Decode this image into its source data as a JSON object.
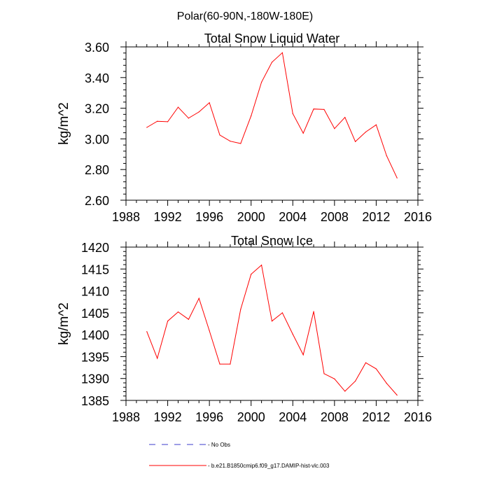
{
  "suptitle": "Polar(60-90N,-180W-180E)",
  "chart_data": [
    {
      "type": "line",
      "title": "Total Snow Liquid Water",
      "xlabel": "",
      "ylabel": "kg/m^2",
      "xlim": [
        1988,
        2016
      ],
      "ylim": [
        2.6,
        3.6
      ],
      "xticks": [
        1988,
        1992,
        1996,
        2000,
        2004,
        2008,
        2012,
        2016
      ],
      "yticks": [
        2.6,
        2.8,
        3.0,
        3.2,
        3.4,
        3.6
      ],
      "ytick_labels": [
        "2.60",
        "2.80",
        "3.00",
        "3.20",
        "3.40",
        "3.60"
      ],
      "series": [
        {
          "name": "b.e21.B1850cmip6.f09_g17.DAMIP-hist-vlc.003",
          "color": "#ff0000",
          "x": [
            1990,
            1991,
            1992,
            1993,
            1994,
            1995,
            1996,
            1997,
            1998,
            1999,
            2000,
            2001,
            2002,
            2003,
            2004,
            2005,
            2006,
            2007,
            2008,
            2009,
            2010,
            2011,
            2012,
            2013,
            2014
          ],
          "values": [
            3.075,
            3.115,
            3.112,
            3.207,
            3.135,
            3.176,
            3.236,
            3.025,
            2.985,
            2.97,
            3.15,
            3.37,
            3.5,
            3.562,
            3.165,
            3.037,
            3.195,
            3.192,
            3.067,
            3.14,
            2.982,
            3.045,
            3.092,
            2.89,
            2.745
          ]
        }
      ]
    },
    {
      "type": "line",
      "title": "Total Snow Ice",
      "xlabel": "",
      "ylabel": "kg/m^2",
      "xlim": [
        1988,
        2016
      ],
      "ylim": [
        1385,
        1420
      ],
      "xticks": [
        1988,
        1992,
        1996,
        2000,
        2004,
        2008,
        2012,
        2016
      ],
      "yticks": [
        1385,
        1390,
        1395,
        1400,
        1405,
        1410,
        1415,
        1420
      ],
      "ytick_labels": [
        "1385",
        "1390",
        "1395",
        "1400",
        "1405",
        "1410",
        "1415",
        "1420"
      ],
      "series": [
        {
          "name": "b.e21.B1850cmip6.f09_g17.DAMIP-hist-vlc.003",
          "color": "#ff0000",
          "x": [
            1990,
            1991,
            1992,
            1993,
            1994,
            1995,
            1996,
            1997,
            1998,
            1999,
            2000,
            2001,
            2002,
            2003,
            2004,
            2005,
            2006,
            2007,
            2008,
            2009,
            2010,
            2011,
            2012,
            2013,
            2014
          ],
          "values": [
            1400.7,
            1394.6,
            1403.1,
            1405.2,
            1403.5,
            1408.3,
            1400.9,
            1393.3,
            1393.3,
            1405.8,
            1413.8,
            1415.9,
            1403.1,
            1405.0,
            1400.1,
            1395.4,
            1405.3,
            1391.1,
            1389.9,
            1387.1,
            1389.4,
            1393.6,
            1392.2,
            1388.9,
            1386.2
          ]
        }
      ]
    }
  ],
  "legend": [
    {
      "label": "No Obs",
      "style": "dashed",
      "color": "#3b3bcc"
    },
    {
      "label": "b.e21.B1850cmip6.f09_g17.DAMIP-hist-vlc.003",
      "style": "solid",
      "color": "#ff0000"
    }
  ]
}
